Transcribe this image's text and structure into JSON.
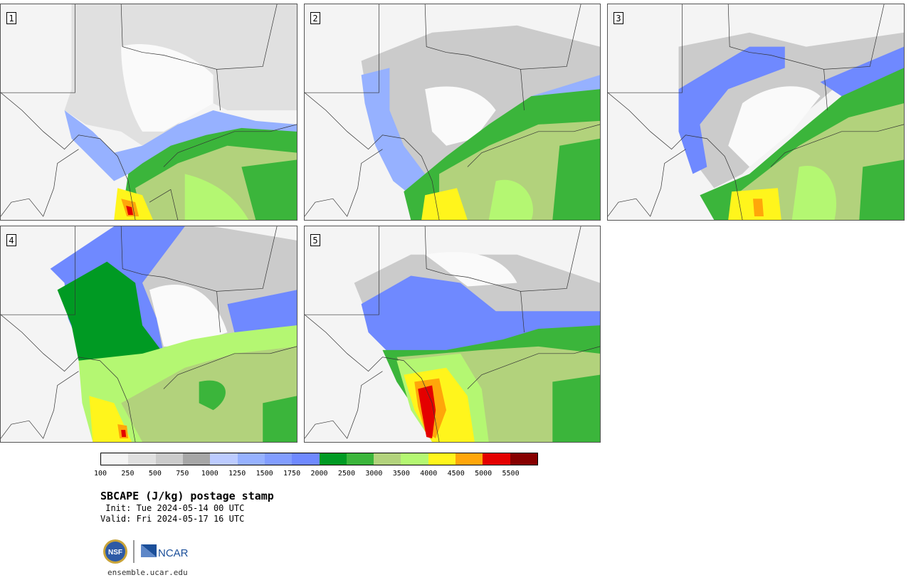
{
  "panels": [
    {
      "label": "1"
    },
    {
      "label": "2"
    },
    {
      "label": "3"
    },
    {
      "label": "4"
    },
    {
      "label": "5"
    }
  ],
  "colorbar": {
    "colors": [
      "#f4f4f4",
      "#e0e0e0",
      "#cbcbcb",
      "#a6a6a6",
      "#bccbff",
      "#96b1ff",
      "#829dff",
      "#6f89ff",
      "#009a23",
      "#3bb53b",
      "#b2d27c",
      "#b4f772",
      "#fff51c",
      "#ffa60a",
      "#e40000",
      "#860000"
    ],
    "ticks": [
      "100",
      "250",
      "500",
      "750",
      "1000",
      "1250",
      "1500",
      "1750",
      "2000",
      "2500",
      "3000",
      "3500",
      "4000",
      "4500",
      "5000",
      "5500"
    ]
  },
  "title": "SBCAPE (J/kg) postage stamp",
  "init_line": " Init: Tue 2024-05-14 00 UTC",
  "valid_line": "Valid: Fri 2024-05-17 16 UTC",
  "logos": {
    "nsf": "NSF",
    "ncar": "NCAR"
  },
  "site": "ensemble.ucar.edu"
}
